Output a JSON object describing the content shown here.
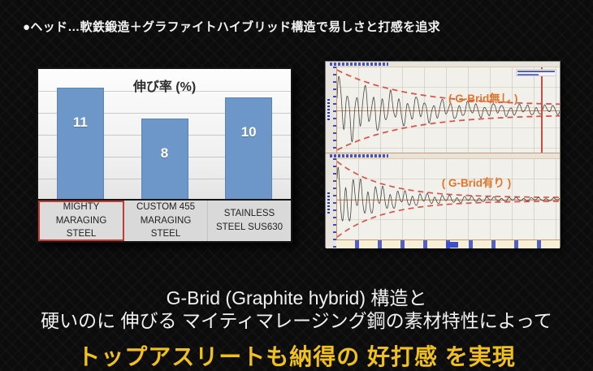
{
  "header": {
    "text": "●ヘッド…軟鉄鍛造＋グラファイトハイブリッド構造で易しさと打感を追求"
  },
  "captions": {
    "line1": "G-Brid (Graphite hybrid) 構造と",
    "line2": "硬いのに 伸びる マイティマレージング鋼の素材特性によって",
    "highlight": "トップアスリートも納得の 好打感 を実現"
  },
  "colors": {
    "accent_yellow": "#f0c01e",
    "bar_blue": "#6e97c9",
    "bar_border": "#5b83b3",
    "highlight_red": "#c63b2f",
    "envelope_red": "#d9544a",
    "annotation_orange": "#e0762e",
    "axis_blue": "#2b38b8"
  },
  "chart_data": [
    {
      "type": "bar",
      "title": "伸び率 (%)",
      "categories": [
        "MIGHTY MARAGING STEEL",
        "CUSTOM 455 MARAGING STEEL",
        "STAINLESS STEEL SUS630"
      ],
      "values": [
        11,
        8,
        10
      ],
      "ylim": [
        0,
        12
      ],
      "grid": true,
      "highlighted_category": "MIGHTY MARAGING STEEL",
      "value_labels": "inside-top, white bold"
    },
    {
      "type": "line",
      "subtype": "damped-vibration-waveform",
      "annotation": "( G-Brid無し )",
      "note": "impact vibration decays slowly; red dashed exponential envelope stays wide to right edge; red vertical cursor near right side",
      "envelope": {
        "base": 0.11,
        "decay": 3.2
      },
      "components": [
        {
          "freq": 26,
          "amp": 0.6,
          "phase": 0
        },
        {
          "freq": 8.5,
          "amp": 0.3,
          "phase": 1.1
        },
        {
          "freq": 55,
          "amp": 0.08,
          "phase": 0.4
        }
      ]
    },
    {
      "type": "line",
      "subtype": "damped-vibration-waveform",
      "annotation": "( G-Brid有り )",
      "note": "impact vibration decays quickly; envelope collapses to flat dashed line along center",
      "envelope": {
        "base": 0.045,
        "decay": 4.8
      },
      "components": [
        {
          "freq": 30,
          "amp": 0.6,
          "phase": 0.5
        },
        {
          "freq": 10,
          "amp": 0.3,
          "phase": 2.0
        },
        {
          "freq": 60,
          "amp": 0.07,
          "phase": 0
        }
      ]
    }
  ]
}
